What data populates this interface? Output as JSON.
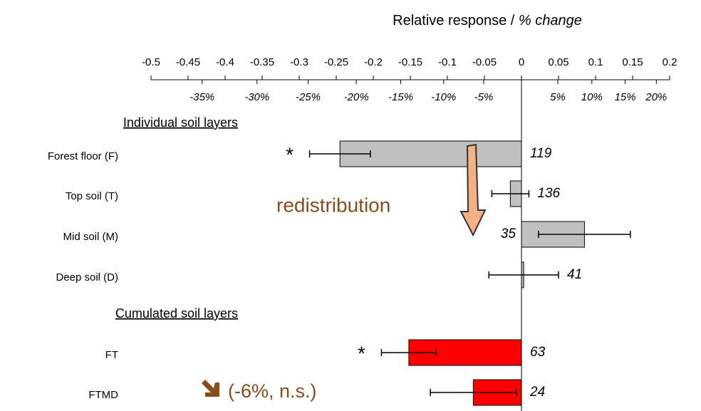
{
  "chart_data": {
    "type": "bar",
    "orientation": "horizontal",
    "title": "Relative response /",
    "title_italic": "% change",
    "group_labels": [
      "Individual  soil layers",
      "Cumulated soil layers"
    ],
    "categories": [
      "Forest floor (F)",
      "Top soil (T)",
      "Mid soil (M)",
      "Deep soil (D)",
      "FT",
      "FTMD"
    ],
    "values": [
      -0.245,
      -0.015,
      0.085,
      0.003,
      -0.152,
      -0.065
    ],
    "errors": [
      0.041,
      0.025,
      0.062,
      0.047,
      0.037,
      0.058
    ],
    "colors": [
      "#c0c0c0",
      "#c0c0c0",
      "#c0c0c0",
      "#c0c0c0",
      "#ff0000",
      "#ff0000"
    ],
    "n": [
      "119",
      "136",
      "35",
      "41",
      "63",
      "24"
    ],
    "significance": [
      "*",
      null,
      null,
      null,
      "*",
      null
    ],
    "xlim": [
      -0.5,
      0.2
    ],
    "xticks": [
      -0.5,
      -0.45,
      -0.4,
      -0.35,
      -0.3,
      -0.25,
      -0.2,
      -0.15,
      -0.1,
      -0.05,
      0,
      0.05,
      0.1,
      0.15,
      0.2
    ],
    "x2ticks": [
      {
        "value": -0.431,
        "label": "-35%"
      },
      {
        "value": -0.357,
        "label": "-30%"
      },
      {
        "value": -0.288,
        "label": "-25%"
      },
      {
        "value": -0.223,
        "label": "-20%"
      },
      {
        "value": -0.163,
        "label": "-15%"
      },
      {
        "value": -0.105,
        "label": "-10%"
      },
      {
        "value": -0.051,
        "label": "-5%"
      },
      {
        "value": 0.049,
        "label": "5%"
      },
      {
        "value": 0.095,
        "label": "10%"
      },
      {
        "value": 0.14,
        "label": "15%"
      },
      {
        "value": 0.182,
        "label": "20%"
      }
    ],
    "annotations": [
      "redistribution",
      "(-6%, n.s.)"
    ]
  }
}
